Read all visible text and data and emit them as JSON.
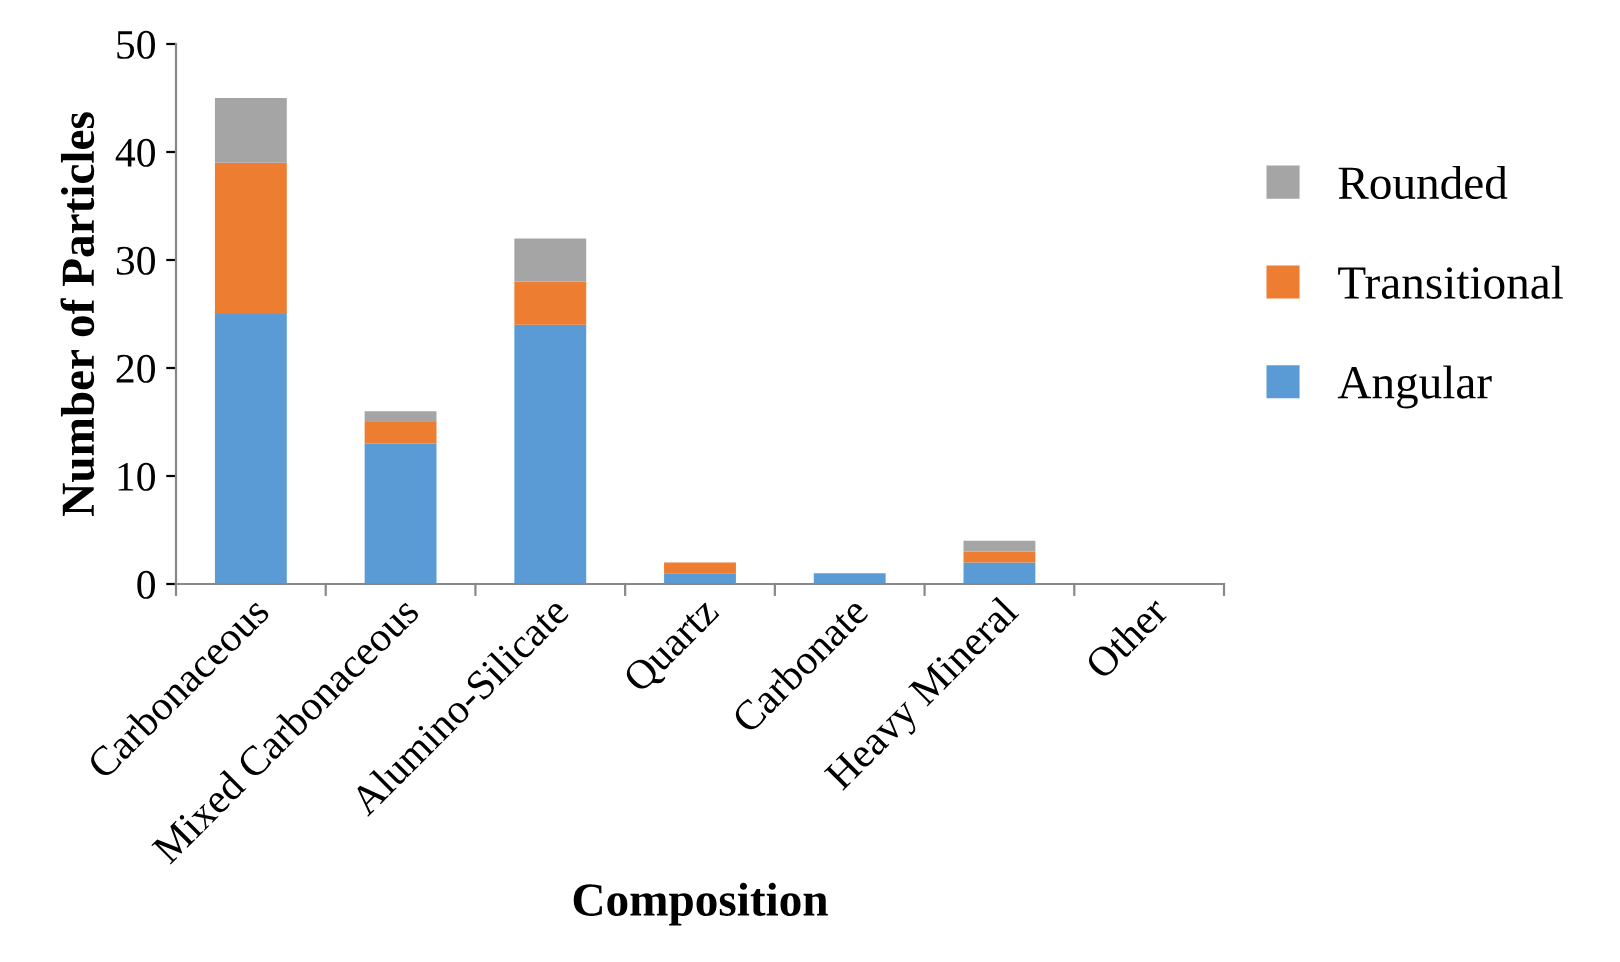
{
  "chart_data": {
    "type": "bar",
    "stacked": true,
    "xlabel": "Composition",
    "ylabel": "Number of Particles",
    "categories": [
      "Carbonaceous",
      "Mixed Carbonaceous",
      "Alumino-Silicate",
      "Quartz",
      "Carbonate",
      "Heavy Mineral",
      "Other"
    ],
    "series": [
      {
        "name": "Angular",
        "color": "#5b9bd5",
        "values": [
          25,
          13,
          24,
          1,
          1,
          2,
          0
        ]
      },
      {
        "name": "Transitional",
        "color": "#ed7d31",
        "values": [
          14,
          2,
          4,
          1,
          0,
          1,
          0
        ]
      },
      {
        "name": "Rounded",
        "color": "#a5a5a5",
        "values": [
          6,
          1,
          4,
          0,
          0,
          1,
          0
        ]
      }
    ],
    "ylim": [
      0,
      50
    ],
    "yticks": [
      0,
      10,
      20,
      30,
      40,
      50
    ],
    "grid": false,
    "legend": "right"
  }
}
